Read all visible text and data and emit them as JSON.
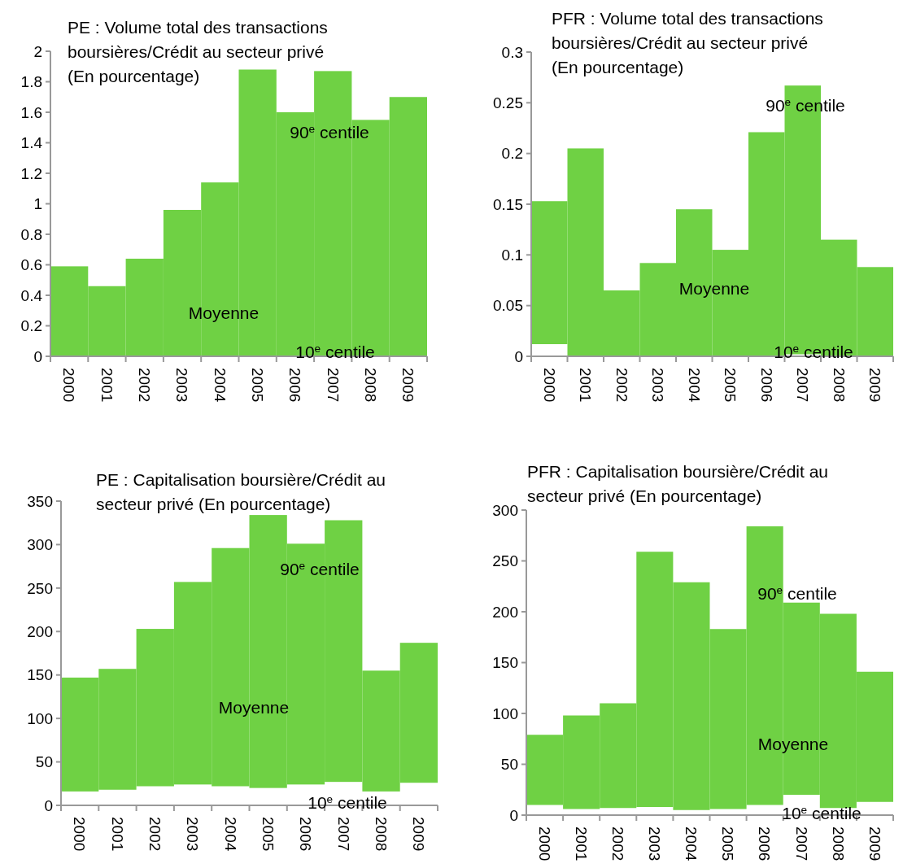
{
  "chart_data": [
    {
      "type": "bar",
      "title": "PE : Volume total des transactions boursières/Crédit au secteur privé (En pourcentage)",
      "categories": [
        "2000",
        "2001",
        "2002",
        "2003",
        "2004",
        "2005",
        "2006",
        "2007",
        "2008",
        "2009"
      ],
      "base": [
        0,
        0,
        0,
        0,
        0,
        0,
        0,
        0,
        0,
        0
      ],
      "values": [
        0.59,
        0.46,
        0.64,
        0.96,
        1.14,
        1.88,
        1.6,
        1.87,
        1.55,
        1.7
      ],
      "color": "#6fd144",
      "ylim": [
        0,
        2
      ],
      "yticks": [
        0,
        0.2,
        0.4,
        0.6,
        0.8,
        1,
        1.2,
        1.4,
        1.6,
        1.8,
        2
      ],
      "annotations": [
        "90$^{e}$ centile",
        "Moyenne",
        "10$^{e}$ centile"
      ]
    },
    {
      "type": "bar",
      "title": "PFR : Volume total des transactions boursières/Crédit au secteur privé (En pourcentage)",
      "categories": [
        "2000",
        "2001",
        "2002",
        "2003",
        "2004",
        "2005",
        "2006",
        "2007",
        "2008",
        "2009"
      ],
      "base": [
        0.012,
        0,
        0,
        0,
        0,
        0,
        0,
        0.002,
        0,
        0
      ],
      "values": [
        0.141,
        0.205,
        0.065,
        0.092,
        0.145,
        0.105,
        0.221,
        0.265,
        0.115,
        0.088
      ],
      "color": "#6fd144",
      "ylim": [
        0,
        0.3
      ],
      "yticks": [
        0,
        0.05,
        0.1,
        0.15,
        0.2,
        0.25,
        0.3
      ],
      "annotations": [
        "90$^{e}$ centile",
        "Moyenne",
        "10$^{e}$ centile"
      ]
    },
    {
      "type": "bar",
      "title": "PE : Capitalisation boursière/Crédit au secteur privé  (En pourcentage)",
      "categories": [
        "2000",
        "2001",
        "2002",
        "2003",
        "2004",
        "2005",
        "2006",
        "2007",
        "2008",
        "2009"
      ],
      "base": [
        16,
        18,
        22,
        24,
        22,
        20,
        24,
        27,
        16,
        26
      ],
      "values": [
        131,
        139,
        181,
        233,
        274,
        314,
        277,
        301,
        139,
        161
      ],
      "color": "#6fd144",
      "ylim": [
        0,
        350
      ],
      "yticks": [
        0,
        50,
        100,
        150,
        200,
        250,
        300,
        350
      ],
      "annotations": [
        "90$^{e}$ centile",
        "Moyenne",
        "10$^{e}$ centile"
      ]
    },
    {
      "type": "bar",
      "title": "PFR : Capitalisation boursière/Crédit au secteur privé (En pourcentage)",
      "categories": [
        "2000",
        "2001",
        "2002",
        "2003",
        "2004",
        "2005",
        "2006",
        "2007",
        "2008",
        "2009"
      ],
      "base": [
        10,
        6,
        7,
        8,
        5,
        6,
        10,
        20,
        7,
        13
      ],
      "values": [
        69,
        92,
        103,
        251,
        224,
        177,
        274,
        189,
        191,
        128
      ],
      "color": "#6fd144",
      "ylim": [
        0,
        300
      ],
      "yticks": [
        0,
        50,
        100,
        150,
        200,
        250,
        300
      ],
      "annotations": [
        "90$^{e}$ centile",
        "Moyenne",
        "10$^{e}$ centile"
      ]
    }
  ]
}
